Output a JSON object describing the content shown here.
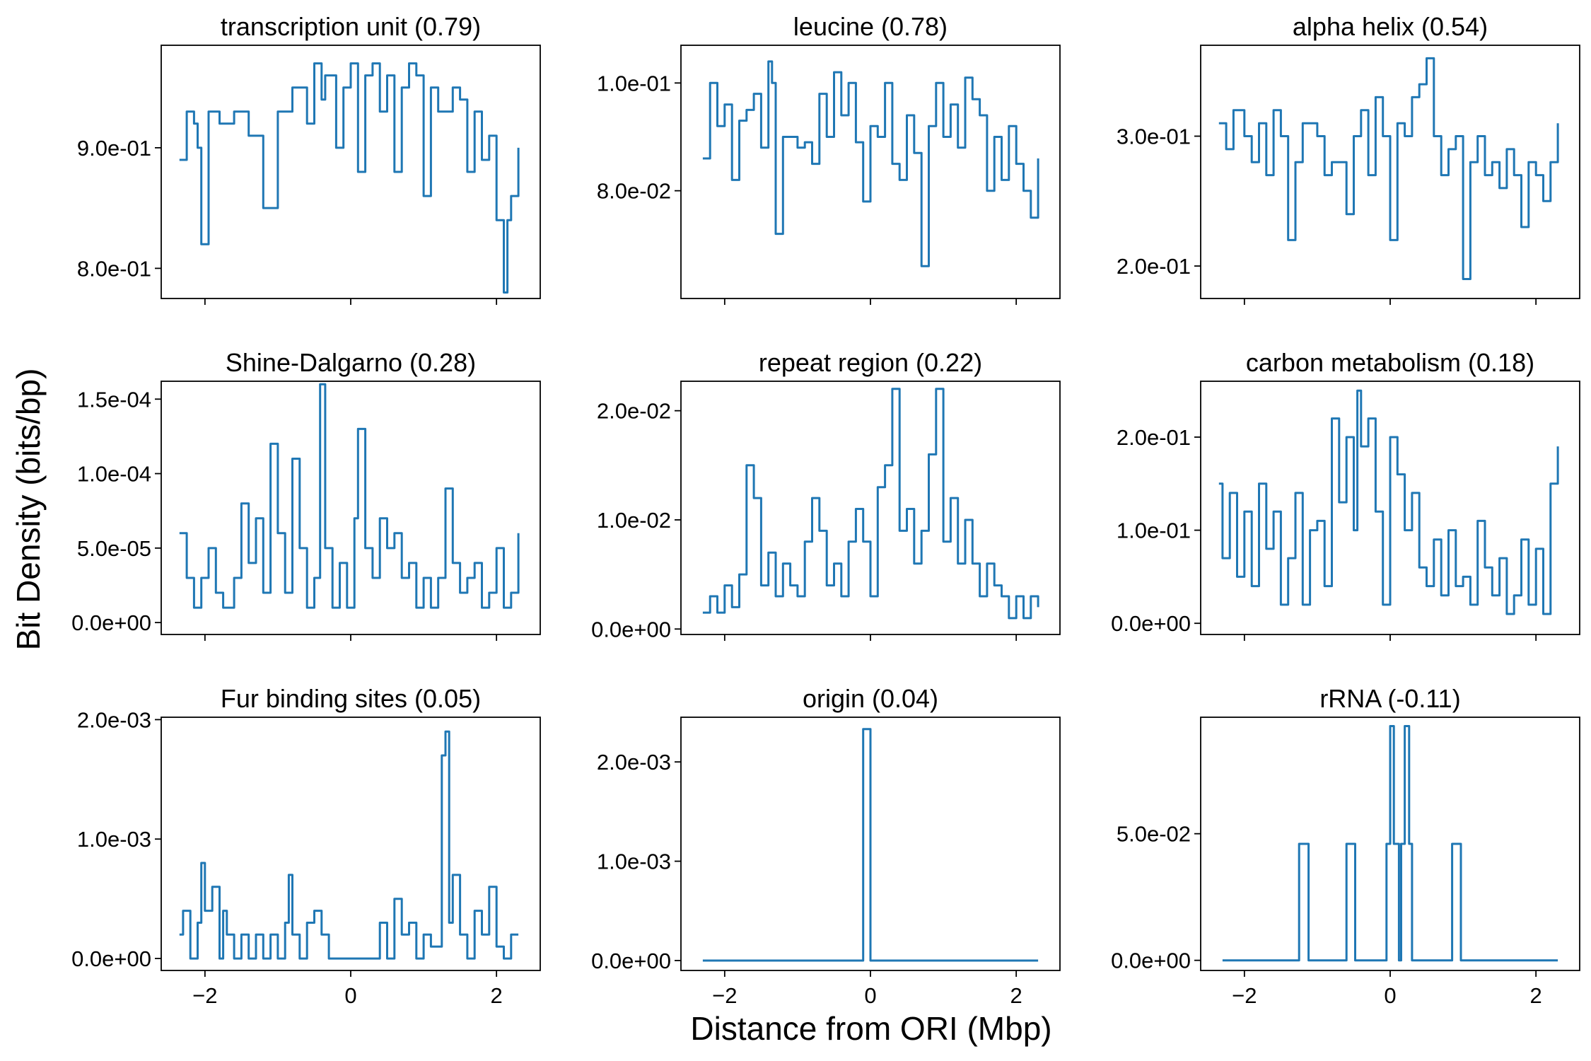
{
  "figure": {
    "xlabel": "Distance from ORI (Mbp)",
    "ylabel": "Bit Density (bits/bp)"
  },
  "chart_data": [
    {
      "type": "line",
      "title": "transcription unit (0.79)",
      "xlim": [
        -2.6,
        2.6
      ],
      "ylim": [
        0.775,
        0.985
      ],
      "yticks": [
        0.8,
        0.9
      ],
      "ytick_labels": [
        "8.0e-01",
        "9.0e-01"
      ],
      "xticks": [
        -2,
        0,
        2
      ],
      "xtick_labels": [
        "",
        "",
        ""
      ],
      "series": [
        {
          "x": [
            -2.35,
            -2.25,
            -2.15,
            -2.1,
            -2.05,
            -1.95,
            -1.8,
            -1.6,
            -1.4,
            -1.2,
            -1.15,
            -1.0,
            -0.8,
            -0.6,
            -0.5,
            -0.4,
            -0.35,
            -0.2,
            -0.1,
            0.0,
            0.1,
            0.2,
            0.3,
            0.4,
            0.5,
            0.6,
            0.7,
            0.8,
            0.9,
            1.0,
            1.1,
            1.2,
            1.4,
            1.5,
            1.6,
            1.7,
            1.8,
            1.9,
            2.0,
            2.1,
            2.15,
            2.2,
            2.3
          ],
          "y": [
            0.89,
            0.93,
            0.92,
            0.9,
            0.82,
            0.93,
            0.92,
            0.93,
            0.91,
            0.85,
            0.85,
            0.93,
            0.95,
            0.92,
            0.97,
            0.94,
            0.96,
            0.9,
            0.95,
            0.97,
            0.88,
            0.96,
            0.97,
            0.93,
            0.96,
            0.88,
            0.95,
            0.97,
            0.96,
            0.86,
            0.95,
            0.93,
            0.95,
            0.94,
            0.88,
            0.93,
            0.89,
            0.91,
            0.84,
            0.78,
            0.84,
            0.86,
            0.9
          ]
        }
      ]
    },
    {
      "type": "line",
      "title": "leucine (0.78)",
      "xlim": [
        -2.6,
        2.6
      ],
      "ylim": [
        0.06,
        0.107
      ],
      "yticks": [
        0.08,
        0.1
      ],
      "ytick_labels": [
        "8.0e-02",
        "1.0e-01"
      ],
      "xticks": [
        -2,
        0,
        2
      ],
      "xtick_labels": [
        "",
        "",
        ""
      ],
      "series": [
        {
          "x": [
            -2.3,
            -2.2,
            -2.1,
            -2.0,
            -1.9,
            -1.8,
            -1.7,
            -1.6,
            -1.5,
            -1.4,
            -1.35,
            -1.3,
            -1.2,
            -1.0,
            -0.9,
            -0.8,
            -0.7,
            -0.6,
            -0.5,
            -0.4,
            -0.3,
            -0.2,
            -0.1,
            0.0,
            0.1,
            0.2,
            0.3,
            0.4,
            0.5,
            0.6,
            0.7,
            0.8,
            0.9,
            1.0,
            1.1,
            1.2,
            1.3,
            1.4,
            1.5,
            1.6,
            1.7,
            1.8,
            1.9,
            2.0,
            2.1,
            2.2,
            2.3
          ],
          "y": [
            0.086,
            0.1,
            0.092,
            0.096,
            0.082,
            0.093,
            0.095,
            0.098,
            0.088,
            0.104,
            0.1,
            0.072,
            0.09,
            0.088,
            0.089,
            0.085,
            0.098,
            0.09,
            0.102,
            0.094,
            0.1,
            0.089,
            0.078,
            0.092,
            0.09,
            0.1,
            0.085,
            0.082,
            0.094,
            0.087,
            0.066,
            0.092,
            0.1,
            0.09,
            0.096,
            0.088,
            0.101,
            0.097,
            0.094,
            0.08,
            0.09,
            0.082,
            0.092,
            0.085,
            0.08,
            0.075,
            0.086
          ]
        }
      ]
    },
    {
      "type": "line",
      "title": "alpha helix (0.54)",
      "xlim": [
        -2.6,
        2.6
      ],
      "ylim": [
        0.175,
        0.37
      ],
      "yticks": [
        0.2,
        0.3
      ],
      "ytick_labels": [
        "2.0e-01",
        "3.0e-01"
      ],
      "xticks": [
        -2,
        0,
        2
      ],
      "xtick_labels": [
        "",
        "",
        ""
      ],
      "series": [
        {
          "x": [
            -2.35,
            -2.25,
            -2.15,
            -2.0,
            -1.9,
            -1.8,
            -1.7,
            -1.6,
            -1.5,
            -1.4,
            -1.3,
            -1.2,
            -1.0,
            -0.9,
            -0.8,
            -0.6,
            -0.5,
            -0.4,
            -0.3,
            -0.2,
            -0.1,
            0.0,
            0.1,
            0.2,
            0.3,
            0.4,
            0.5,
            0.6,
            0.7,
            0.8,
            0.9,
            1.0,
            1.1,
            1.2,
            1.3,
            1.4,
            1.5,
            1.6,
            1.7,
            1.8,
            1.9,
            2.0,
            2.1,
            2.2,
            2.3
          ],
          "y": [
            0.31,
            0.29,
            0.32,
            0.3,
            0.28,
            0.31,
            0.27,
            0.32,
            0.3,
            0.22,
            0.28,
            0.31,
            0.3,
            0.27,
            0.28,
            0.24,
            0.3,
            0.32,
            0.27,
            0.33,
            0.3,
            0.22,
            0.31,
            0.3,
            0.33,
            0.34,
            0.36,
            0.3,
            0.27,
            0.29,
            0.3,
            0.19,
            0.28,
            0.3,
            0.27,
            0.28,
            0.26,
            0.29,
            0.27,
            0.23,
            0.28,
            0.27,
            0.25,
            0.28,
            0.31
          ]
        }
      ]
    },
    {
      "type": "line",
      "title": "Shine-Dalgarno (0.28)",
      "xlim": [
        -2.6,
        2.6
      ],
      "ylim": [
        -8e-06,
        0.000162
      ],
      "yticks": [
        0,
        5e-05,
        0.0001,
        0.00015
      ],
      "ytick_labels": [
        "0.0e+00",
        "5.0e-05",
        "1.0e-04",
        "1.5e-04"
      ],
      "xticks": [
        -2,
        0,
        2
      ],
      "xtick_labels": [
        "",
        "",
        ""
      ],
      "series": [
        {
          "x": [
            -2.35,
            -2.25,
            -2.15,
            -2.05,
            -1.95,
            -1.85,
            -1.75,
            -1.6,
            -1.5,
            -1.4,
            -1.3,
            -1.2,
            -1.1,
            -1.0,
            -0.9,
            -0.8,
            -0.7,
            -0.6,
            -0.5,
            -0.42,
            -0.35,
            -0.25,
            -0.15,
            -0.05,
            0.05,
            0.1,
            0.2,
            0.3,
            0.4,
            0.5,
            0.6,
            0.7,
            0.8,
            0.9,
            1.0,
            1.1,
            1.2,
            1.3,
            1.4,
            1.5,
            1.6,
            1.7,
            1.8,
            1.9,
            2.0,
            2.1,
            2.2,
            2.3
          ],
          "y": [
            6e-05,
            3e-05,
            1e-05,
            3e-05,
            5e-05,
            2e-05,
            1e-05,
            3e-05,
            8e-05,
            4e-05,
            7e-05,
            2e-05,
            0.00012,
            6e-05,
            2e-05,
            0.00011,
            5e-05,
            1e-05,
            3e-05,
            0.00016,
            5e-05,
            1e-05,
            4e-05,
            1e-05,
            7e-05,
            0.00013,
            5e-05,
            3e-05,
            7e-05,
            5e-05,
            6e-05,
            3e-05,
            4e-05,
            1e-05,
            3e-05,
            1e-05,
            3e-05,
            9e-05,
            4e-05,
            2e-05,
            3e-05,
            4e-05,
            1e-05,
            2e-05,
            5e-05,
            1e-05,
            2e-05,
            6e-05
          ]
        }
      ]
    },
    {
      "type": "line",
      "title": "repeat region (0.22)",
      "xlim": [
        -2.6,
        2.6
      ],
      "ylim": [
        -0.0005,
        0.0227
      ],
      "yticks": [
        0,
        0.01,
        0.02
      ],
      "ytick_labels": [
        "0.0e+00",
        "1.0e-02",
        "2.0e-02"
      ],
      "xticks": [
        -2,
        0,
        2
      ],
      "xtick_labels": [
        "",
        "",
        ""
      ],
      "series": [
        {
          "x": [
            -2.3,
            -2.2,
            -2.1,
            -2.0,
            -1.9,
            -1.8,
            -1.7,
            -1.6,
            -1.5,
            -1.4,
            -1.3,
            -1.2,
            -1.1,
            -1.0,
            -0.9,
            -0.8,
            -0.7,
            -0.6,
            -0.5,
            -0.4,
            -0.3,
            -0.2,
            -0.1,
            0.0,
            0.1,
            0.2,
            0.3,
            0.4,
            0.5,
            0.6,
            0.7,
            0.8,
            0.9,
            1.0,
            1.1,
            1.2,
            1.3,
            1.4,
            1.5,
            1.6,
            1.7,
            1.8,
            1.9,
            2.0,
            2.1,
            2.2,
            2.3
          ],
          "y": [
            0.0015,
            0.003,
            0.0015,
            0.004,
            0.002,
            0.005,
            0.015,
            0.012,
            0.004,
            0.007,
            0.003,
            0.006,
            0.004,
            0.003,
            0.008,
            0.012,
            0.009,
            0.004,
            0.006,
            0.003,
            0.008,
            0.011,
            0.008,
            0.003,
            0.013,
            0.015,
            0.022,
            0.009,
            0.011,
            0.006,
            0.009,
            0.016,
            0.022,
            0.008,
            0.012,
            0.006,
            0.01,
            0.006,
            0.003,
            0.006,
            0.004,
            0.003,
            0.001,
            0.003,
            0.001,
            0.003,
            0.002
          ]
        }
      ]
    },
    {
      "type": "line",
      "title": "carbon metabolism (0.18)",
      "xlim": [
        -2.6,
        2.6
      ],
      "ylim": [
        -0.012,
        0.26
      ],
      "yticks": [
        0,
        0.1,
        0.2
      ],
      "ytick_labels": [
        "0.0e+00",
        "1.0e-01",
        "2.0e-01"
      ],
      "xticks": [
        -2,
        0,
        2
      ],
      "xtick_labels": [
        "",
        "",
        ""
      ],
      "series": [
        {
          "x": [
            -2.35,
            -2.3,
            -2.2,
            -2.1,
            -2.0,
            -1.9,
            -1.8,
            -1.7,
            -1.6,
            -1.5,
            -1.4,
            -1.3,
            -1.2,
            -1.1,
            -1.0,
            -0.9,
            -0.8,
            -0.7,
            -0.6,
            -0.5,
            -0.45,
            -0.4,
            -0.3,
            -0.2,
            -0.1,
            0.0,
            0.1,
            0.2,
            0.3,
            0.4,
            0.5,
            0.6,
            0.7,
            0.8,
            0.9,
            1.0,
            1.1,
            1.2,
            1.3,
            1.4,
            1.5,
            1.6,
            1.7,
            1.8,
            1.9,
            2.0,
            2.1,
            2.2,
            2.3
          ],
          "y": [
            0.15,
            0.07,
            0.14,
            0.05,
            0.12,
            0.04,
            0.15,
            0.08,
            0.12,
            0.02,
            0.07,
            0.14,
            0.02,
            0.1,
            0.11,
            0.04,
            0.22,
            0.13,
            0.2,
            0.1,
            0.25,
            0.19,
            0.22,
            0.12,
            0.02,
            0.2,
            0.16,
            0.1,
            0.14,
            0.06,
            0.04,
            0.09,
            0.03,
            0.1,
            0.04,
            0.05,
            0.02,
            0.11,
            0.06,
            0.03,
            0.07,
            0.01,
            0.03,
            0.09,
            0.02,
            0.08,
            0.01,
            0.15,
            0.19
          ]
        }
      ]
    },
    {
      "type": "line",
      "title": "Fur binding sites (0.05)",
      "xlim": [
        -2.6,
        2.6
      ],
      "ylim": [
        -0.0001,
        0.00202
      ],
      "yticks": [
        0,
        0.001,
        0.002
      ],
      "ytick_labels": [
        "0.0e+00",
        "1.0e-03",
        "2.0e-03"
      ],
      "xticks": [
        -2,
        0,
        2
      ],
      "xtick_labels": [
        "-2",
        "0",
        "2"
      ],
      "series": [
        {
          "x": [
            -2.35,
            -2.3,
            -2.2,
            -2.1,
            -2.05,
            -2.0,
            -1.9,
            -1.8,
            -1.75,
            -1.7,
            -1.6,
            -1.5,
            -1.4,
            -1.3,
            -1.2,
            -1.1,
            -1.0,
            -0.9,
            -0.85,
            -0.8,
            -0.7,
            -0.6,
            -0.5,
            -0.4,
            -0.3,
            -0.2,
            -0.1,
            0.0,
            0.1,
            0.2,
            0.3,
            0.4,
            0.5,
            0.6,
            0.7,
            0.8,
            0.9,
            1.0,
            1.1,
            1.2,
            1.25,
            1.3,
            1.35,
            1.4,
            1.5,
            1.6,
            1.7,
            1.8,
            1.9,
            2.0,
            2.1,
            2.2,
            2.3
          ],
          "y": [
            0.0002,
            0.0004,
            0.0,
            0.0003,
            0.0008,
            0.0004,
            0.0006,
            0.0,
            0.0004,
            0.0002,
            0.0,
            0.0002,
            0.0,
            0.0002,
            0.0,
            0.0002,
            0.0,
            0.0003,
            0.0007,
            0.0002,
            0.0,
            0.0003,
            0.0004,
            0.0002,
            0.0,
            0.0,
            0.0,
            0.0,
            0.0,
            0.0,
            0.0,
            0.0003,
            0.0,
            0.0005,
            0.0002,
            0.0003,
            0.0,
            0.0002,
            0.0001,
            0.0001,
            0.0017,
            0.0019,
            0.0003,
            0.0007,
            0.0002,
            0.0,
            0.0004,
            0.0002,
            0.0006,
            0.0001,
            0.0,
            0.0002,
            0.0002
          ]
        }
      ]
    },
    {
      "type": "line",
      "title": "origin (0.04)",
      "xlim": [
        -2.6,
        2.6
      ],
      "ylim": [
        -0.0001,
        0.00245
      ],
      "yticks": [
        0,
        0.001,
        0.002
      ],
      "ytick_labels": [
        "0.0e+00",
        "1.0e-03",
        "2.0e-03"
      ],
      "xticks": [
        -2,
        0,
        2
      ],
      "xtick_labels": [
        "-2",
        "0",
        "2"
      ],
      "series": [
        {
          "x": [
            -2.3,
            -0.1,
            -0.1,
            0.0,
            0.0,
            2.3
          ],
          "y": [
            0.0,
            0.0,
            0.00233,
            0.00233,
            0.0,
            0.0
          ]
        }
      ]
    },
    {
      "type": "line",
      "title": "rRNA (-0.11)",
      "xlim": [
        -2.6,
        2.6
      ],
      "ylim": [
        -0.004,
        0.096
      ],
      "yticks": [
        0,
        0.05
      ],
      "ytick_labels": [
        "0.0e+00",
        "5.0e-02"
      ],
      "xticks": [
        -2,
        0,
        2
      ],
      "xtick_labels": [
        "-2",
        "0",
        "2"
      ],
      "series": [
        {
          "x": [
            -2.3,
            -1.25,
            -1.25,
            -1.12,
            -1.12,
            -0.6,
            -0.6,
            -0.48,
            -0.48,
            -0.05,
            -0.05,
            0.0,
            0.0,
            0.05,
            0.05,
            0.12,
            0.12,
            0.15,
            0.15,
            0.2,
            0.2,
            0.26,
            0.26,
            0.3,
            0.3,
            0.85,
            0.85,
            0.97,
            0.97,
            2.3
          ],
          "y": [
            0.0,
            0.0,
            0.046,
            0.046,
            0.0,
            0.0,
            0.046,
            0.046,
            0.0,
            0.0,
            0.046,
            0.046,
            0.0925,
            0.0925,
            0.046,
            0.046,
            0.0,
            0.0,
            0.046,
            0.046,
            0.0925,
            0.0925,
            0.046,
            0.046,
            0.0,
            0.0,
            0.046,
            0.046,
            0.0,
            0.0
          ]
        }
      ]
    }
  ]
}
